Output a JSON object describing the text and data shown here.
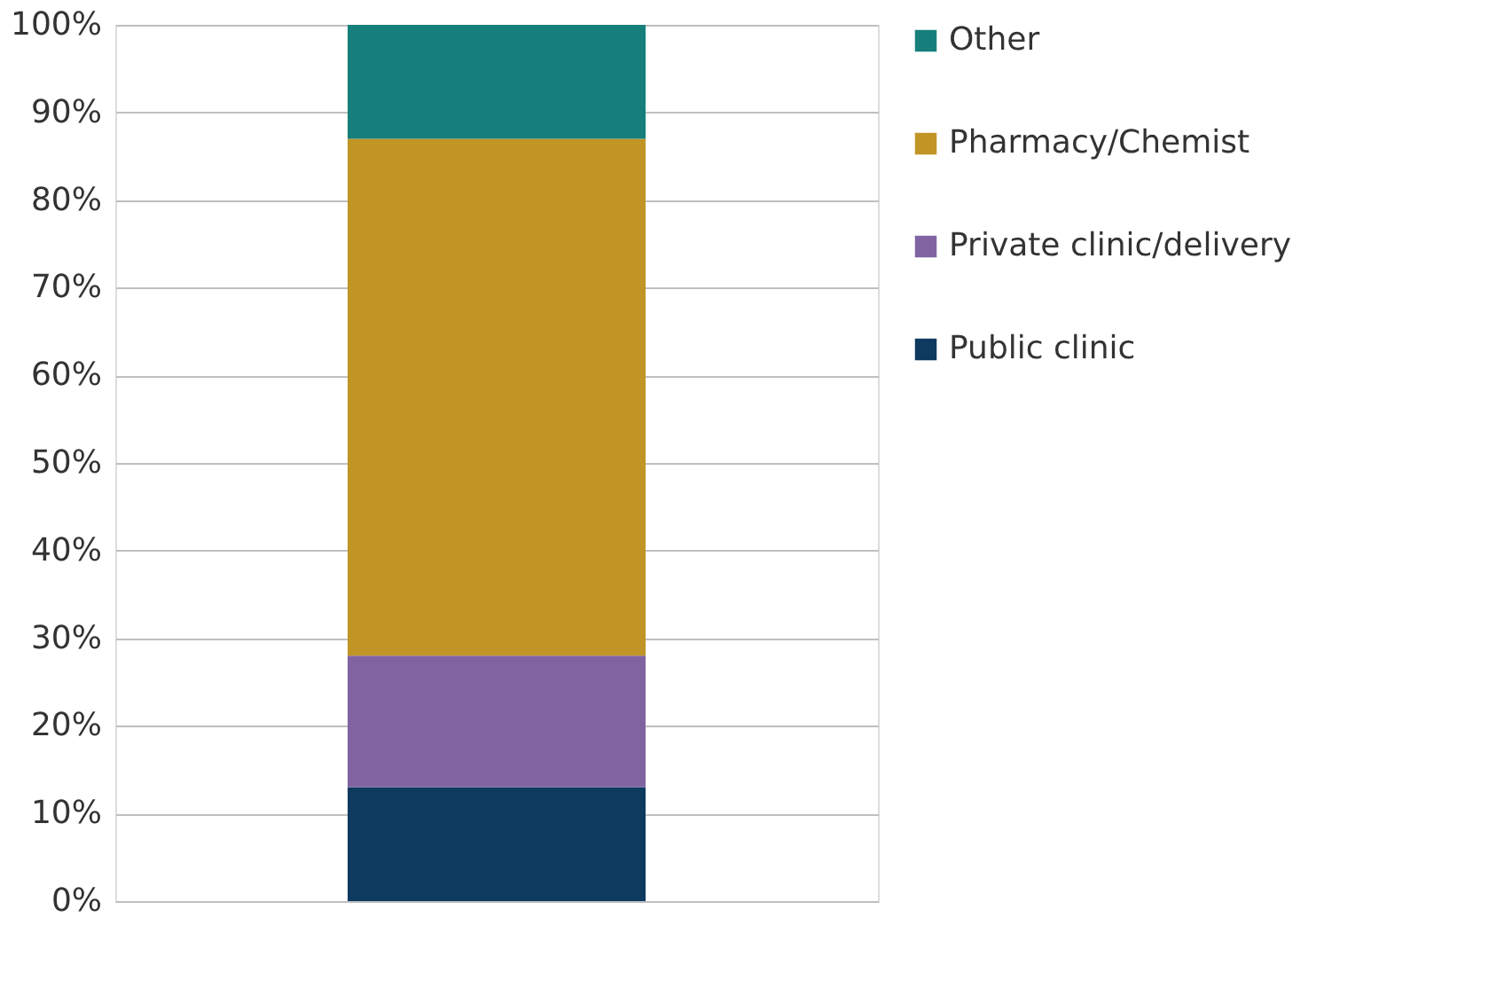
{
  "chart_data": {
    "type": "bar",
    "stacked": true,
    "categories": [
      null
    ],
    "series": [
      {
        "name": "Public clinic",
        "color": "#0e3a5f",
        "values": [
          13
        ]
      },
      {
        "name": "Private clinic/delivery",
        "color": "#8064a2",
        "values": [
          15
        ]
      },
      {
        "name": "Pharmacy/Chemist",
        "color": "#c09525",
        "values": [
          59
        ]
      },
      {
        "name": "Other",
        "color": "#167f7b",
        "values": [
          13
        ]
      }
    ],
    "ylim": [
      0,
      100
    ],
    "yticks": [
      {
        "value": 0,
        "label": "0%"
      },
      {
        "value": 10,
        "label": "10%"
      },
      {
        "value": 20,
        "label": "20%"
      },
      {
        "value": 30,
        "label": "30%"
      },
      {
        "value": 40,
        "label": "40%"
      },
      {
        "value": 50,
        "label": "50%"
      },
      {
        "value": 60,
        "label": "60%"
      },
      {
        "value": 70,
        "label": "70%"
      },
      {
        "value": 80,
        "label": "80%"
      },
      {
        "value": 90,
        "label": "90%"
      },
      {
        "value": 100,
        "label": "100%"
      }
    ],
    "grid": "y",
    "legend": "right",
    "tick_labels": "y"
  }
}
